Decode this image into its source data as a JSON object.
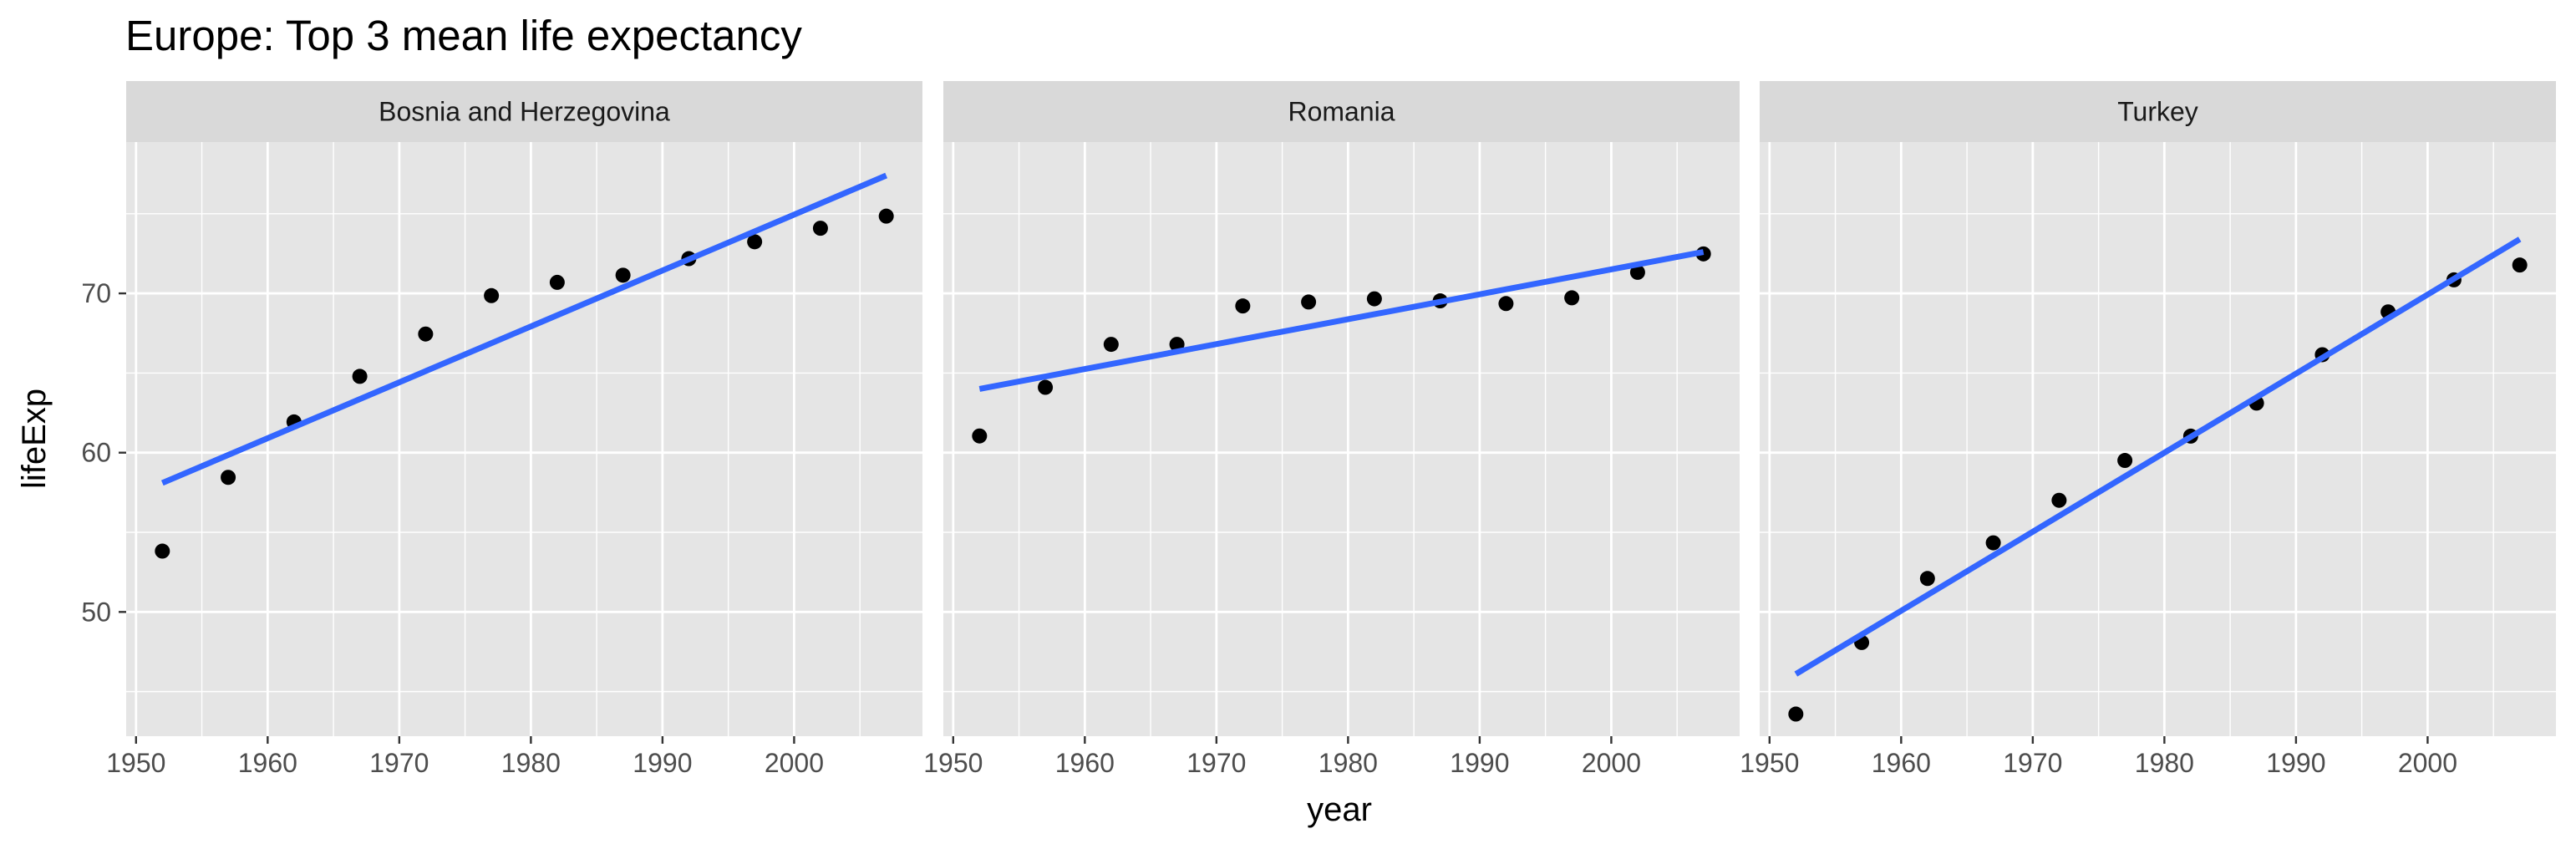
{
  "chart_data": {
    "type": "scatter",
    "title": "Europe: Top 3 mean life expectancy",
    "xlabel": "year",
    "ylabel": "lifeExp",
    "x_ticks": [
      1950,
      1960,
      1970,
      1980,
      1990,
      2000
    ],
    "y_ticks": [
      50,
      60,
      70
    ],
    "xlim": [
      1949.25,
      2009.75
    ],
    "ylim": [
      42.2,
      79.5
    ],
    "grid": true,
    "legend": "none",
    "colors": {
      "panel_bg": "#e5e5e5",
      "grid": "#ffffff",
      "strip_bg": "#d9d9d9",
      "point": "#000000",
      "trend_line": "#3366ff"
    },
    "facets": [
      {
        "label": "Bosnia and Herzegovina",
        "x": [
          1952,
          1957,
          1962,
          1967,
          1972,
          1977,
          1982,
          1987,
          1992,
          1997,
          2002,
          2007
        ],
        "y": [
          53.82,
          58.45,
          61.93,
          64.79,
          67.45,
          69.86,
          70.69,
          71.14,
          72.18,
          73.24,
          74.09,
          74.85
        ],
        "trend": {
          "x": [
            1952,
            2007
          ],
          "y": [
            58.1,
            77.4
          ]
        }
      },
      {
        "label": "Romania",
        "x": [
          1952,
          1957,
          1962,
          1967,
          1972,
          1977,
          1982,
          1987,
          1992,
          1997,
          2002,
          2007
        ],
        "y": [
          61.05,
          64.1,
          66.8,
          66.8,
          69.21,
          69.46,
          69.66,
          69.53,
          69.36,
          69.72,
          71.32,
          72.48
        ],
        "trend": {
          "x": [
            1952,
            2007
          ],
          "y": [
            64.0,
            72.6
          ]
        }
      },
      {
        "label": "Turkey",
        "x": [
          1952,
          1957,
          1962,
          1967,
          1972,
          1977,
          1982,
          1987,
          1992,
          1997,
          2002,
          2007
        ],
        "y": [
          43.59,
          48.08,
          52.1,
          54.34,
          57.01,
          59.51,
          61.04,
          63.11,
          66.15,
          68.84,
          70.85,
          71.78
        ],
        "trend": {
          "x": [
            1952,
            2007
          ],
          "y": [
            46.1,
            73.4
          ]
        }
      }
    ]
  }
}
